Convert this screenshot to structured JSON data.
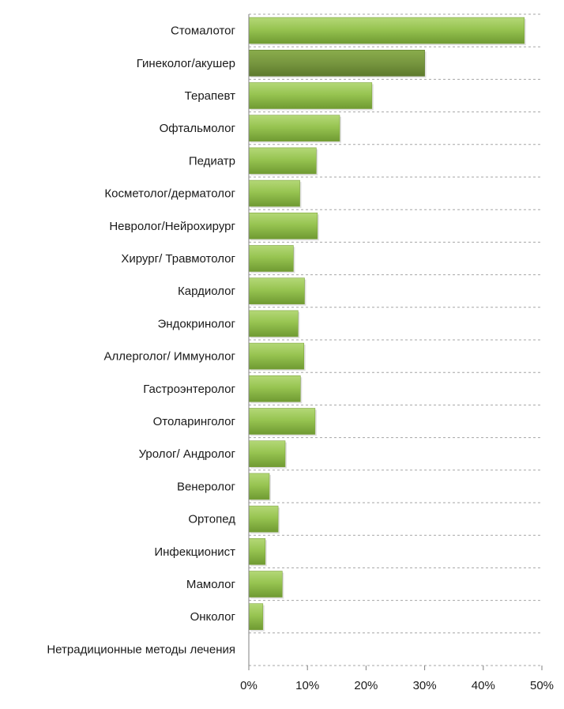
{
  "chart_data": {
    "type": "bar",
    "orientation": "horizontal",
    "title": "",
    "xlabel": "",
    "ylabel": "",
    "categories": [
      "Стомалотог",
      "Гинеколог/акушер",
      "Терапевт",
      "Офтальмолог",
      "Педиатр",
      "Косметолог/дерматолог",
      "Невролог/Нейрохирург",
      "Хирург/ Травмотолог",
      "Кардиолог",
      "Эндокринолог",
      "Аллерголог/ Иммунолог",
      "Гастроэнтеролог",
      "Отоларинголог",
      "Уролог/ Андролог",
      "Венеролог",
      "Ортопед",
      "Инфекционист",
      "Мамолог",
      "Онколог",
      "Нетрадиционные методы лечения"
    ],
    "values": [
      47,
      30,
      21,
      15.5,
      11.5,
      8.7,
      11.7,
      7.6,
      9.5,
      8.4,
      9.4,
      8.8,
      11.3,
      6.2,
      3.5,
      5.0,
      2.8,
      5.7,
      2.4,
      0
    ],
    "highlight_index": 1,
    "xlim": [
      0,
      50
    ],
    "x_ticks": [
      "0%",
      "10%",
      "20%",
      "30%",
      "40%",
      "50%"
    ],
    "grid": true,
    "colors": {
      "bar_light": "#a8d065",
      "bar_mid": "#8fbd4a",
      "bar_dark": "#6f9a32",
      "highlight": "#77963f",
      "highlight_light": "#8aad4c"
    }
  }
}
